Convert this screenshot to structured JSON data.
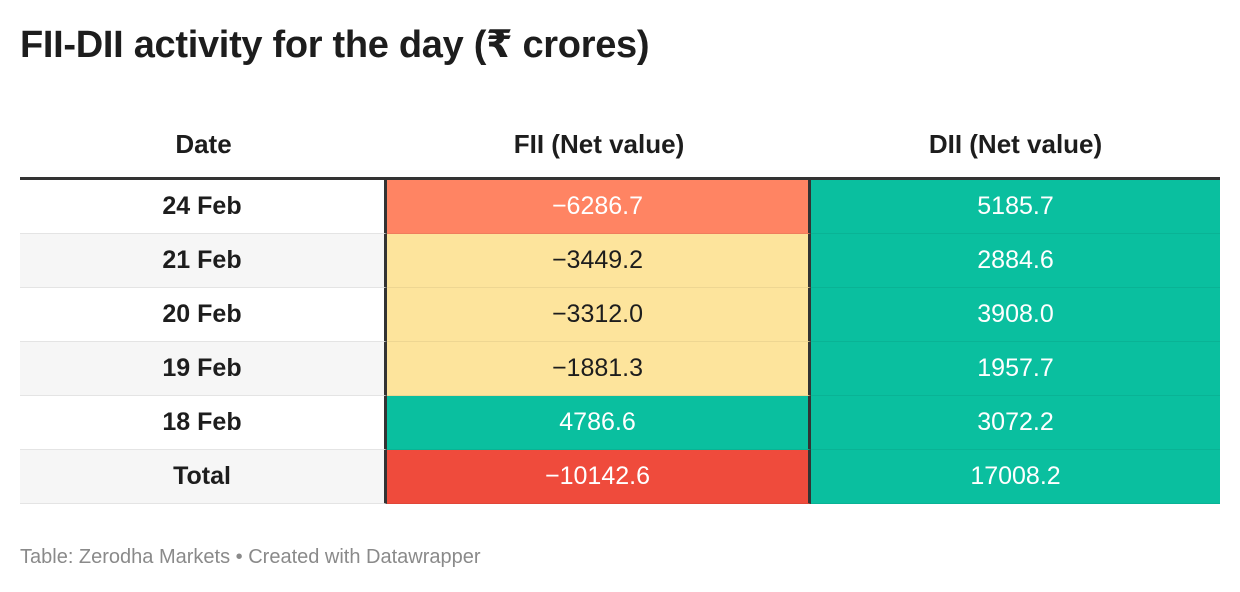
{
  "title": "FII-DII activity for the day (₹ crores)",
  "footer": "Table: Zerodha Markets • Created with Datawrapper",
  "colors": {
    "strong_negative": "#ef4b3c",
    "negative": "#ff8463",
    "mild_negative": "#fde49c",
    "positive": "#0abf9f"
  },
  "chart_data": {
    "type": "table",
    "columns": [
      "Date",
      "FII (Net value)",
      "DII (Net value)"
    ],
    "rows": [
      {
        "date": "24 Feb",
        "fii": "−6286.7",
        "dii": "5185.7",
        "fii_value": -6286.7,
        "dii_value": 5185.7,
        "fii_color": "#ff8463",
        "fii_text_color": "#ffffff"
      },
      {
        "date": "21 Feb",
        "fii": "−3449.2",
        "dii": "2884.6",
        "fii_value": -3449.2,
        "dii_value": 2884.6,
        "fii_color": "#fde49c",
        "fii_text_color": "#1d1d1d"
      },
      {
        "date": "20 Feb",
        "fii": "−3312.0",
        "dii": "3908.0",
        "fii_value": -3312.0,
        "dii_value": 3908.0,
        "fii_color": "#fde49c",
        "fii_text_color": "#1d1d1d"
      },
      {
        "date": "19 Feb",
        "fii": "−1881.3",
        "dii": "1957.7",
        "fii_value": -1881.3,
        "dii_value": 1957.7,
        "fii_color": "#fde49c",
        "fii_text_color": "#1d1d1d"
      },
      {
        "date": "18 Feb",
        "fii": "4786.6",
        "dii": "3072.2",
        "fii_value": 4786.6,
        "dii_value": 3072.2,
        "fii_color": "#0abf9f",
        "fii_text_color": "#ffffff"
      },
      {
        "date": "Total",
        "fii": "−10142.6",
        "dii": "17008.2",
        "fii_value": -10142.6,
        "dii_value": 17008.2,
        "fii_color": "#ef4b3c",
        "fii_text_color": "#ffffff"
      }
    ],
    "dii_color": "#0abf9f",
    "dii_text_color": "#ffffff"
  }
}
